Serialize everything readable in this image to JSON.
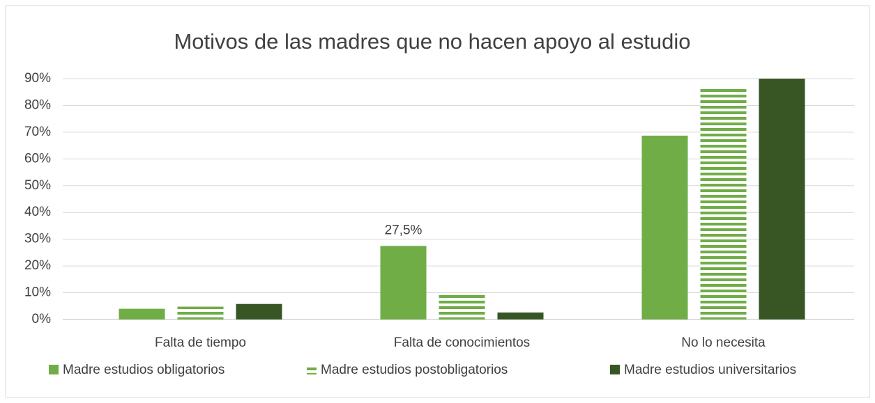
{
  "chart_data": {
    "type": "bar",
    "title": "Motivos de las madres que no hacen apoyo al estudio",
    "categories": [
      "Falta de tiempo",
      "Falta de conocimientos",
      "No lo necesita"
    ],
    "series": [
      {
        "name": "Madre estudios obligatorios",
        "color": "#70ad47",
        "pattern": "solid",
        "values": [
          4,
          27.5,
          68.7
        ],
        "value_labels": [
          null,
          "27,5%",
          null
        ]
      },
      {
        "name": "Madre estudios postobligatorios",
        "color": "#70ad47",
        "pattern": "horizontal-stripes",
        "values": [
          4.8,
          9.2,
          86.3
        ]
      },
      {
        "name": "Madre estudios universitarios",
        "color": "#375623",
        "pattern": "solid",
        "values": [
          5.8,
          2.6,
          90
        ]
      }
    ],
    "ylim": [
      0,
      90
    ],
    "yticks": [
      {
        "value": 0,
        "label": "0%"
      },
      {
        "value": 10,
        "label": "10%"
      },
      {
        "value": 20,
        "label": "20%"
      },
      {
        "value": 30,
        "label": "30%"
      },
      {
        "value": 40,
        "label": "40%"
      },
      {
        "value": 50,
        "label": "50%"
      },
      {
        "value": 60,
        "label": "60%"
      },
      {
        "value": 70,
        "label": "70%"
      },
      {
        "value": 80,
        "label": "80%"
      },
      {
        "value": 90,
        "label": "90%"
      }
    ],
    "grid": true,
    "legend": "bottom"
  }
}
